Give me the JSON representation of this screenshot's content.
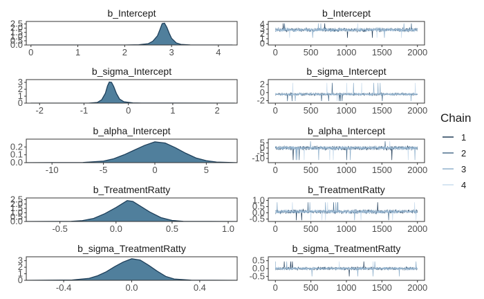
{
  "chart_data": [
    {
      "type": "area",
      "title": "b_Intercept",
      "xlim": [
        -0.1,
        4.4
      ],
      "ylim": [
        0,
        2.8
      ],
      "xticks": [
        0,
        1,
        2,
        3,
        4
      ],
      "yticks": [
        0,
        0.5,
        1.0,
        1.5,
        2.0,
        2.5
      ],
      "x": [
        0,
        2.0,
        2.3,
        2.5,
        2.6,
        2.7,
        2.75,
        2.8,
        2.85,
        2.9,
        2.95,
        3.0,
        3.1,
        3.2,
        3.4,
        4.3
      ],
      "y": [
        0,
        0,
        0.03,
        0.15,
        0.45,
        1.1,
        1.8,
        2.55,
        2.6,
        2.1,
        1.4,
        0.8,
        0.25,
        0.07,
        0.01,
        0
      ]
    },
    {
      "type": "line",
      "title": "b_Intercept",
      "xlim": [
        -100,
        2100
      ],
      "ylim": [
        -0.3,
        4.6
      ],
      "xticks": [
        0,
        500,
        1000,
        1500,
        2000
      ],
      "yticks": [
        0,
        1,
        2,
        3,
        4
      ],
      "center": 2.85,
      "spread": 0.45,
      "spike_low": 1.2,
      "spike_high": 4.2
    },
    {
      "type": "area",
      "title": "b_sigma_Intercept",
      "xlim": [
        -2.3,
        2.45
      ],
      "ylim": [
        0,
        3.4
      ],
      "xticks": [
        -2,
        -1,
        0,
        1,
        2
      ],
      "yticks": [
        0,
        1,
        2,
        3
      ],
      "x": [
        -2.2,
        -0.9,
        -0.7,
        -0.6,
        -0.52,
        -0.47,
        -0.43,
        -0.38,
        -0.33,
        -0.27,
        -0.2,
        -0.1,
        0.1,
        0.3,
        2.4
      ],
      "y": [
        0,
        0,
        0.1,
        0.5,
        1.4,
        2.5,
        3.05,
        3.0,
        2.4,
        1.4,
        0.6,
        0.2,
        0.04,
        0.01,
        0
      ]
    },
    {
      "type": "line",
      "title": "b_sigma_Intercept",
      "xlim": [
        -100,
        2100
      ],
      "ylim": [
        -2.6,
        3.2
      ],
      "xticks": [
        0,
        500,
        1000,
        1500,
        2000
      ],
      "yticks": [
        -2,
        0,
        2
      ],
      "center": -0.4,
      "spread": 0.35,
      "spike_low": -2.1,
      "spike_high": 2.4
    },
    {
      "type": "area",
      "title": "b_alpha_Intercept",
      "xlim": [
        -12.5,
        8
      ],
      "ylim": [
        0,
        0.3
      ],
      "xticks": [
        -10,
        -5,
        0,
        5
      ],
      "yticks": [
        0,
        0.1,
        0.2
      ],
      "x": [
        -12.5,
        -7,
        -5,
        -4,
        -3,
        -2,
        -1,
        0,
        1,
        2,
        3,
        4,
        5,
        6,
        8
      ],
      "y": [
        0,
        0.002,
        0.02,
        0.05,
        0.1,
        0.16,
        0.22,
        0.265,
        0.25,
        0.19,
        0.12,
        0.06,
        0.025,
        0.008,
        0
      ]
    },
    {
      "type": "line",
      "title": "b_alpha_Intercept",
      "xlim": [
        -100,
        2100
      ],
      "ylim": [
        -14,
        8.5
      ],
      "xticks": [
        0,
        500,
        1000,
        1500,
        2000
      ],
      "yticks": [
        -10,
        -5,
        0,
        5
      ],
      "center": 0,
      "spread": 2.2,
      "spike_low": -11.5,
      "spike_high": 6.5
    },
    {
      "type": "area",
      "title": "b_TreatmentRatty",
      "xlim": [
        -0.8,
        1.08
      ],
      "ylim": [
        0,
        2.7
      ],
      "xticks": [
        -0.5,
        0.0,
        0.5,
        1.0
      ],
      "yticks": [
        0,
        0.5,
        1.0,
        1.5,
        2.0,
        2.5
      ],
      "x": [
        -0.8,
        -0.4,
        -0.3,
        -0.2,
        -0.1,
        0.0,
        0.05,
        0.1,
        0.15,
        0.2,
        0.3,
        0.4,
        0.5,
        0.6,
        1.08
      ],
      "y": [
        0,
        0.02,
        0.1,
        0.35,
        0.9,
        1.6,
        2.0,
        2.4,
        2.3,
        1.9,
        1.1,
        0.45,
        0.12,
        0.02,
        0
      ]
    },
    {
      "type": "line",
      "title": "b_TreatmentRatty",
      "xlim": [
        -100,
        2100
      ],
      "ylim": [
        -0.7,
        1.2
      ],
      "xticks": [
        0,
        500,
        1000,
        1500,
        2000
      ],
      "yticks": [
        -0.5,
        0.0,
        0.5,
        1.0
      ],
      "center": 0.1,
      "spread": 0.18,
      "spike_low": -0.6,
      "spike_high": 0.85
    },
    {
      "type": "area",
      "title": "b_sigma_TreatmentRatty",
      "xlim": [
        -0.62,
        0.62
      ],
      "ylim": [
        0,
        3.6
      ],
      "xticks": [
        -0.4,
        0.0,
        0.4
      ],
      "yticks": [
        0,
        1,
        2,
        3
      ],
      "x": [
        -0.62,
        -0.35,
        -0.25,
        -0.2,
        -0.15,
        -0.1,
        -0.05,
        0,
        0.05,
        0.1,
        0.15,
        0.2,
        0.25,
        0.35,
        0.62
      ],
      "y": [
        0,
        0.05,
        0.3,
        0.7,
        1.3,
        2.1,
        2.8,
        3.3,
        3.1,
        2.3,
        1.4,
        0.6,
        0.2,
        0.02,
        0
      ]
    },
    {
      "type": "line",
      "title": "b_sigma_TreatmentRatty",
      "xlim": [
        -100,
        2100
      ],
      "ylim": [
        -0.75,
        0.75
      ],
      "xticks": [
        0,
        500,
        1000,
        1500,
        2000
      ],
      "yticks": [
        -0.5,
        0.0,
        0.5
      ],
      "center": 0.0,
      "spread": 0.1,
      "spike_low": -0.5,
      "spike_high": 0.45
    }
  ],
  "legend": {
    "title": "Chain",
    "items": [
      {
        "label": "1",
        "color": "#1f3a56"
      },
      {
        "label": "2",
        "color": "#4a6d8c"
      },
      {
        "label": "3",
        "color": "#8fb0cc"
      },
      {
        "label": "4",
        "color": "#c9dced"
      }
    ]
  },
  "colors": {
    "density_fill": "#507f9c",
    "density_line": "#1e3f5a",
    "panel_border": "#333333"
  }
}
